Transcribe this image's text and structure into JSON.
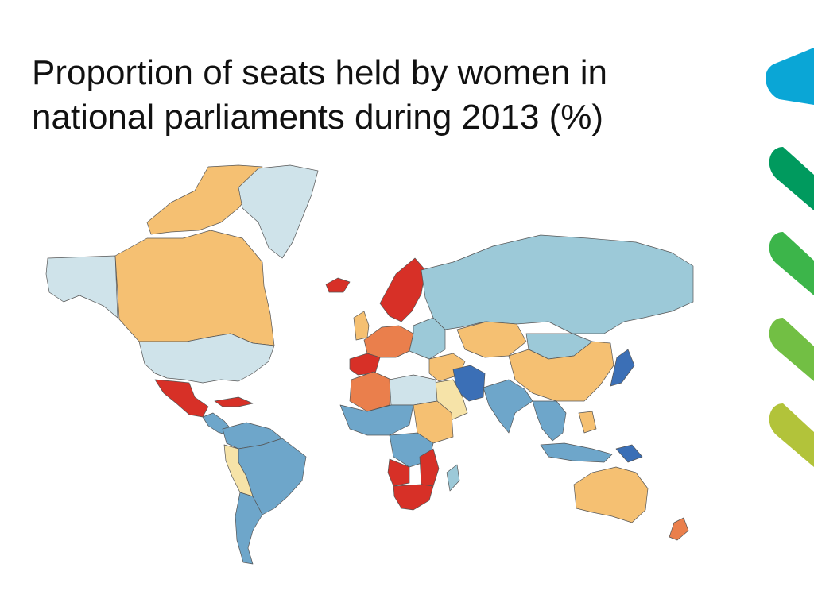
{
  "slide": {
    "title_line1": "Proportion of seats held by women in",
    "title_line2": "national parliaments during 2013 (%)"
  },
  "colors": {
    "rule": "#c9c9c9",
    "background": "#ffffff",
    "ocean": "#ffffff",
    "border": "#555555",
    "scale": [
      "#3b6fb6",
      "#6ea6ca",
      "#9cc9d8",
      "#cfe3ea",
      "#f6e3a8",
      "#f5c072",
      "#ea7f4c",
      "#d73027"
    ],
    "decoration": [
      "#0aa6d6",
      "#009a5e",
      "#3cb54a",
      "#72bf44",
      "#b2c33a"
    ]
  },
  "map": {
    "regions": [
      {
        "name": "canada",
        "color_index": 5
      },
      {
        "name": "arctic-archipelago",
        "color_index": 5
      },
      {
        "name": "alaska",
        "color_index": 3
      },
      {
        "name": "usa",
        "color_index": 3
      },
      {
        "name": "greenland",
        "color_index": 3
      },
      {
        "name": "mexico",
        "color_index": 7
      },
      {
        "name": "central-america",
        "color_index": 1
      },
      {
        "name": "caribbean",
        "color_index": 7
      },
      {
        "name": "south-america-north",
        "color_index": 1
      },
      {
        "name": "brazil",
        "color_index": 1
      },
      {
        "name": "andes",
        "color_index": 4
      },
      {
        "name": "argentina-chile",
        "color_index": 1
      },
      {
        "name": "iceland",
        "color_index": 7
      },
      {
        "name": "scandinavia",
        "color_index": 7
      },
      {
        "name": "uk",
        "color_index": 5
      },
      {
        "name": "western-europe",
        "color_index": 6
      },
      {
        "name": "iberia",
        "color_index": 7
      },
      {
        "name": "eastern-europe",
        "color_index": 2
      },
      {
        "name": "russia",
        "color_index": 2
      },
      {
        "name": "kazakhstan",
        "color_index": 5
      },
      {
        "name": "middle-east",
        "color_index": 5
      },
      {
        "name": "iran",
        "color_index": 0
      },
      {
        "name": "arabia",
        "color_index": 4
      },
      {
        "name": "north-africa-west",
        "color_index": 6
      },
      {
        "name": "north-africa-east",
        "color_index": 3
      },
      {
        "name": "sahel",
        "color_index": 1
      },
      {
        "name": "ethiopia-region",
        "color_index": 5
      },
      {
        "name": "central-africa",
        "color_index": 1
      },
      {
        "name": "angola",
        "color_index": 7
      },
      {
        "name": "mozambique",
        "color_index": 7
      },
      {
        "name": "southern-africa",
        "color_index": 7
      },
      {
        "name": "madagascar",
        "color_index": 2
      },
      {
        "name": "south-asia",
        "color_index": 1
      },
      {
        "name": "china",
        "color_index": 5
      },
      {
        "name": "mongolia",
        "color_index": 2
      },
      {
        "name": "southeast-asia",
        "color_index": 1
      },
      {
        "name": "japan",
        "color_index": 0
      },
      {
        "name": "indonesia",
        "color_index": 1
      },
      {
        "name": "philippines",
        "color_index": 5
      },
      {
        "name": "papua",
        "color_index": 0
      },
      {
        "name": "australia",
        "color_index": 5
      },
      {
        "name": "new-zealand",
        "color_index": 6
      }
    ]
  }
}
